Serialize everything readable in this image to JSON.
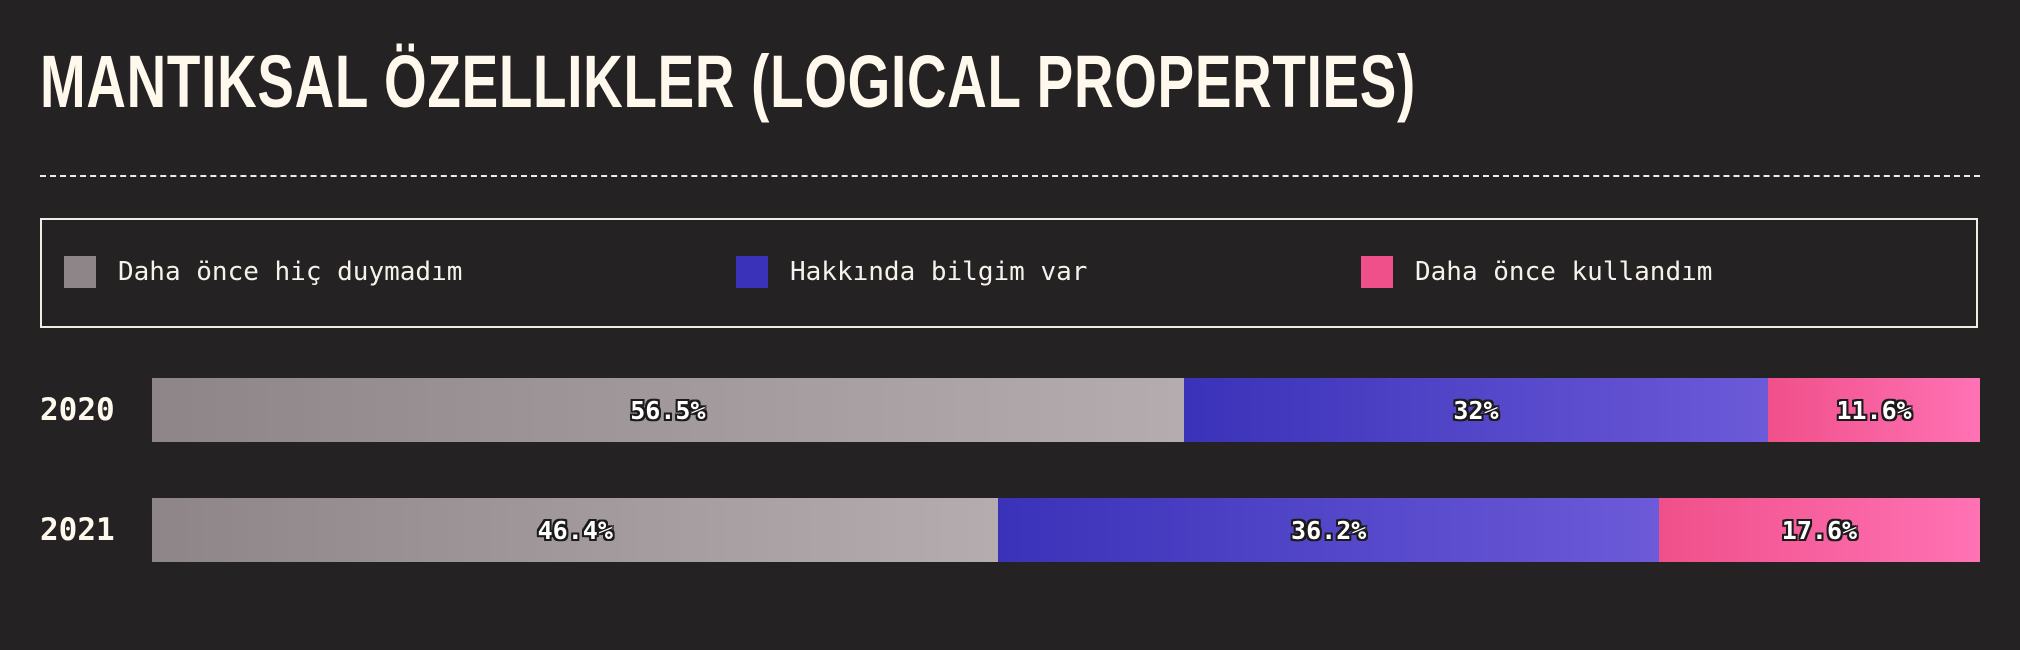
{
  "title": "MANTIKSAL ÖZELLIKLER (LOGICAL PROPERTIES)",
  "legend": [
    {
      "label": "Daha önce hiç duymadım",
      "color": "#8e8589"
    },
    {
      "label": "Hakkında bilgim var",
      "color": "#3a32b9"
    },
    {
      "label": "Daha önce kullandım",
      "color": "#f0508a"
    }
  ],
  "chart_data": {
    "type": "bar",
    "stacked": true,
    "orientation": "horizontal",
    "categories": [
      "2020",
      "2021"
    ],
    "series": [
      {
        "name": "Daha önce hiç duymadım",
        "values": [
          56.5,
          46.4
        ],
        "labels": [
          "56.5%",
          "46.4%"
        ],
        "color": "#8e8589",
        "color_end": "#b4acaf"
      },
      {
        "name": "Hakkında bilgim var",
        "values": [
          32,
          36.2
        ],
        "labels": [
          "32%",
          "36.2%"
        ],
        "color": "#3a32b9",
        "color_end": "#6c5ad8"
      },
      {
        "name": "Daha önce kullandım",
        "values": [
          11.6,
          17.6
        ],
        "labels": [
          "11.6%",
          "17.6%"
        ],
        "color": "#f0508a",
        "color_end": "#ff72b4"
      }
    ],
    "xlim": [
      0,
      100
    ]
  }
}
